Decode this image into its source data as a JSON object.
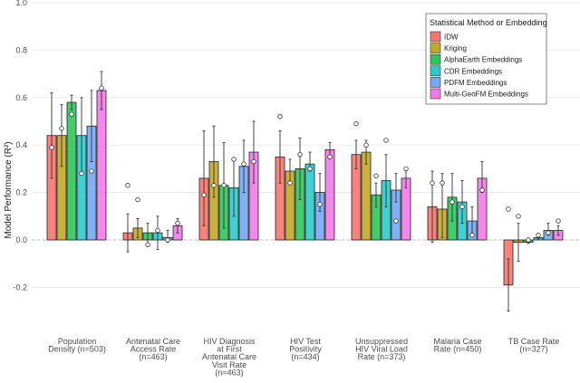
{
  "chart_data": {
    "type": "bar",
    "ylabel": "Model Performance (R²)",
    "ylim": [
      -0.3,
      1.0
    ],
    "yticks": [
      "1.0",
      "0.8",
      "0.6",
      "0.4",
      "0.2",
      "0.0",
      "-0.2"
    ],
    "grid": true,
    "legend_placement": "top-right",
    "legend_title": "Statistical Method or Embedding",
    "categories": [
      [
        "Population",
        "Density (n=503)"
      ],
      [
        "Antenatal Care",
        "Access Rate",
        "(n=463)"
      ],
      [
        "HIV Diagnosis",
        "at First",
        "Antenatal Care",
        "Visit Rate",
        "(n=463)"
      ],
      [
        "HIV Test",
        "Positivity",
        "(n=434)"
      ],
      [
        "Unsuppressed",
        "HIV Viral Load",
        "Rate (n=373)"
      ],
      [
        "Malaria Case",
        "Rate (n=450)"
      ],
      [
        "TB Case Rate",
        "(n=327)"
      ]
    ],
    "series": [
      {
        "name": "IDW",
        "color": "#F8766D",
        "values": [
          0.44,
          0.03,
          0.26,
          0.35,
          0.36,
          0.14,
          -0.19
        ],
        "err_low": [
          0.26,
          -0.05,
          0.06,
          0.24,
          0.3,
          -0.01,
          -0.3
        ],
        "err_high": [
          0.62,
          0.11,
          0.46,
          0.46,
          0.42,
          0.29,
          -0.08
        ],
        "points": [
          0.39,
          0.23,
          0.19,
          0.52,
          0.49,
          0.24,
          0.13
        ]
      },
      {
        "name": "Kriging",
        "color": "#C4A82A",
        "values": [
          0.44,
          0.05,
          0.33,
          0.29,
          0.37,
          0.13,
          -0.01
        ],
        "err_low": [
          0.31,
          0.01,
          0.18,
          0.24,
          0.32,
          0.01,
          -0.09
        ],
        "err_high": [
          0.57,
          0.09,
          0.48,
          0.34,
          0.42,
          0.28,
          0.07
        ],
        "points": [
          0.47,
          0.17,
          0.23,
          0.24,
          0.4,
          0.24,
          0.1
        ]
      },
      {
        "name": "AlphaEarth Embeddings",
        "color": "#2DC65A",
        "values": [
          0.58,
          0.03,
          0.23,
          0.3,
          0.19,
          0.18,
          -0.01
        ],
        "err_low": [
          0.55,
          -0.02,
          0.05,
          0.17,
          0.14,
          0.08,
          -0.015
        ],
        "err_high": [
          0.61,
          0.07,
          0.41,
          0.43,
          0.24,
          0.28,
          0.005
        ],
        "points": [
          0.53,
          -0.02,
          0.23,
          0.36,
          0.27,
          0.16,
          0.0
        ]
      },
      {
        "name": "CDR Embeddings",
        "color": "#2BCBCB",
        "values": [
          0.44,
          0.03,
          0.22,
          0.32,
          0.25,
          0.16,
          0.01
        ],
        "err_low": [
          0.28,
          -0.04,
          0.1,
          0.29,
          0.14,
          0.07,
          0.005
        ],
        "err_high": [
          0.6,
          0.1,
          0.34,
          0.37,
          0.36,
          0.25,
          0.015
        ],
        "points": [
          0.28,
          0.04,
          0.34,
          0.3,
          0.42,
          0.14,
          0.02
        ]
      },
      {
        "name": "PDFM Embeddings",
        "color": "#74A8F5",
        "values": [
          0.48,
          0.01,
          0.31,
          0.2,
          0.21,
          0.08,
          0.04
        ],
        "err_low": [
          0.33,
          -0.01,
          0.2,
          0.12,
          0.16,
          0.02,
          0.02
        ],
        "err_high": [
          0.63,
          0.04,
          0.42,
          0.28,
          0.28,
          0.14,
          0.07
        ],
        "points": [
          0.29,
          0.0,
          0.32,
          0.15,
          0.08,
          0.02,
          0.03
        ]
      },
      {
        "name": "Multi-GeoFM Embeddings",
        "color": "#F07BE8",
        "values": [
          0.63,
          0.06,
          0.37,
          0.38,
          0.26,
          0.26,
          0.04
        ],
        "err_low": [
          0.55,
          0.03,
          0.24,
          0.35,
          0.22,
          0.2,
          0.02
        ],
        "err_high": [
          0.71,
          0.09,
          0.5,
          0.41,
          0.3,
          0.33,
          0.06
        ],
        "points": [
          0.64,
          0.07,
          0.33,
          0.35,
          0.3,
          0.21,
          0.08
        ]
      }
    ]
  }
}
